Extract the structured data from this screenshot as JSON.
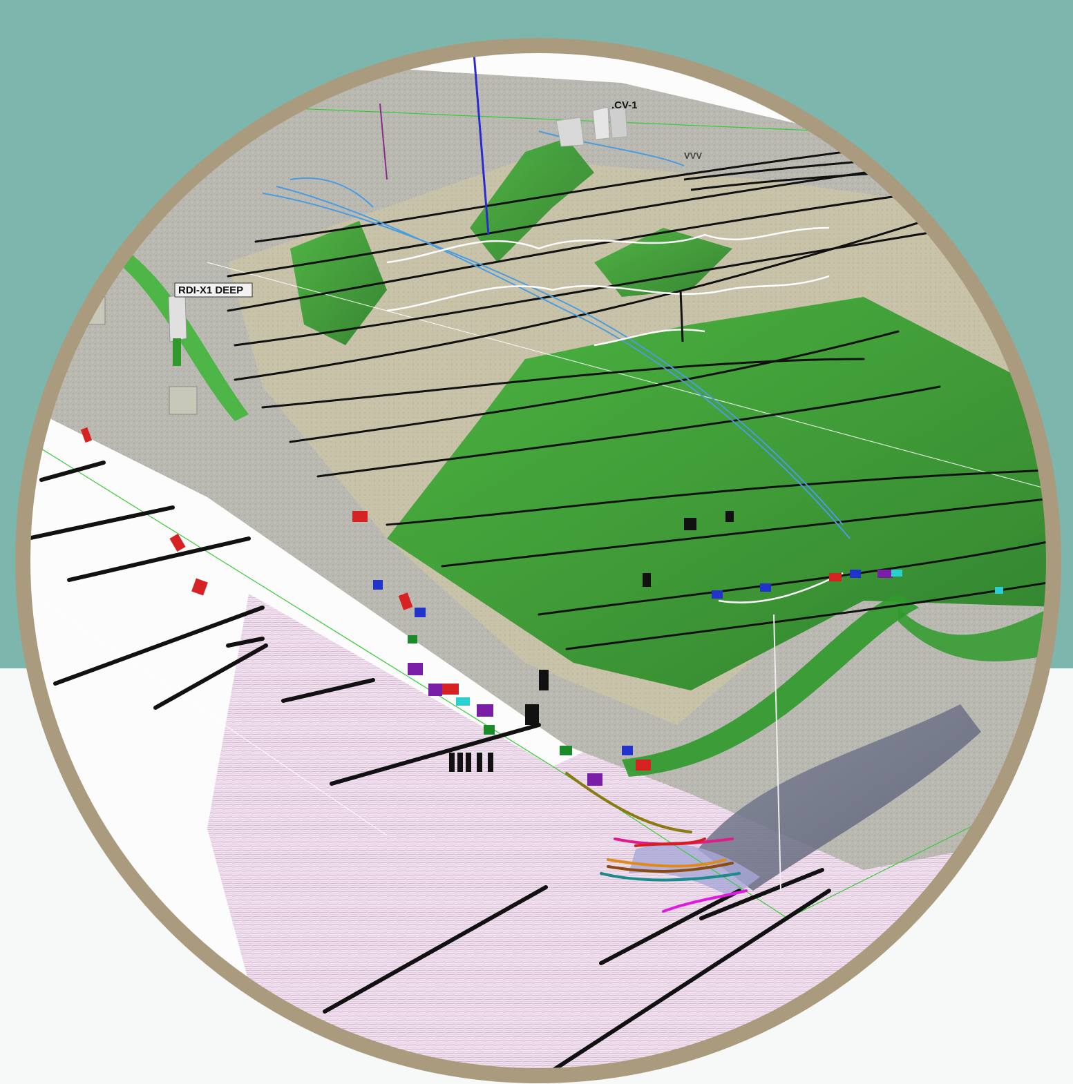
{
  "colors": {
    "teal_background": "#7db6ad",
    "page_background": "#f7f8f8",
    "frame_ring": "#ab9b7e",
    "horizon_green": "#2f9a2a",
    "terrain_gray": "#b9b9b2",
    "fault_line": "#111111",
    "well_red": "#d62222",
    "well_blue": "#2233cc",
    "well_purple": "#7a1ea8"
  },
  "wells": {
    "rdi_label": "RDI-X1 DEEP",
    "cv_label": ".CV-1",
    "vvv_label": "VVV"
  }
}
